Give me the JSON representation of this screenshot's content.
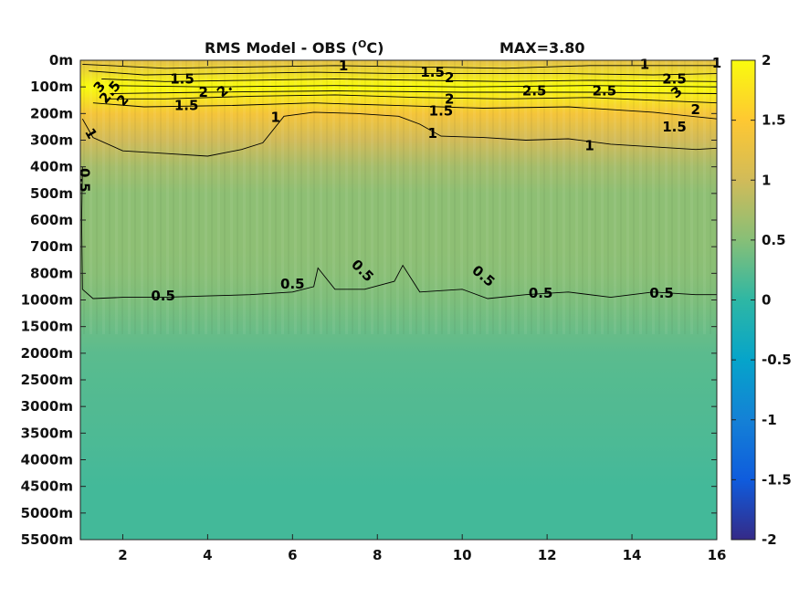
{
  "chart_data": {
    "type": "heatmap",
    "title": {
      "main": "RMS Model - OBS (",
      "superscript": "O",
      "unit": "C)",
      "max": "MAX=3.80"
    },
    "x": {
      "min": 1,
      "max": 16,
      "ticks": [
        2,
        4,
        6,
        8,
        10,
        12,
        14,
        16
      ],
      "tick_labels": [
        "2",
        "4",
        "6",
        "8",
        "10",
        "12",
        "14",
        "16"
      ]
    },
    "y": {
      "scale": "categorical-depth",
      "tick_labels": [
        "0m",
        "100m",
        "200m",
        "300m",
        "400m",
        "500m",
        "600m",
        "700m",
        "800m",
        "1000m",
        "1500m",
        "2000m",
        "2500m",
        "3000m",
        "3500m",
        "4000m",
        "4500m",
        "5000m",
        "5500m"
      ]
    },
    "colorbar": {
      "min": -2,
      "max": 2,
      "ticks": [
        2,
        1.5,
        1,
        0.5,
        0,
        -0.5,
        -1,
        -1.5,
        -2
      ],
      "tick_labels": [
        "2",
        "1.5",
        "1",
        "0.5",
        "0",
        "-0.5",
        "-1",
        "-1.5",
        "-2"
      ],
      "colormap": "parula",
      "stops": [
        "#352a87",
        "#0f5cdd",
        "#1481d6",
        "#06a4ca",
        "#2eb7a4",
        "#87bf77",
        "#d1bb59",
        "#fec832",
        "#f9fb0e"
      ]
    },
    "depth_profile": [
      {
        "depth": "0m",
        "value": 1.2
      },
      {
        "depth": "100m",
        "value": 2.5
      },
      {
        "depth": "200m",
        "value": 1.4
      },
      {
        "depth": "300m",
        "value": 1.0
      },
      {
        "depth": "400m",
        "value": 0.7
      },
      {
        "depth": "500m",
        "value": 0.55
      },
      {
        "depth": "600m",
        "value": 0.55
      },
      {
        "depth": "700m",
        "value": 0.55
      },
      {
        "depth": "800m",
        "value": 0.52
      },
      {
        "depth": "1000m",
        "value": 0.45
      },
      {
        "depth": "1500m",
        "value": 0.35
      },
      {
        "depth": "2000m",
        "value": 0.25
      },
      {
        "depth": "2500m",
        "value": 0.22
      },
      {
        "depth": "3000m",
        "value": 0.2
      },
      {
        "depth": "3500m",
        "value": 0.18
      },
      {
        "depth": "4000m",
        "value": 0.15
      },
      {
        "depth": "4500m",
        "value": 0.12
      },
      {
        "depth": "5000m",
        "value": 0.12
      },
      {
        "depth": "5500m",
        "value": 0.12
      }
    ],
    "contour_labels": [
      {
        "text": "1",
        "x": 7.2,
        "depth": 0.2,
        "rotate": 0
      },
      {
        "text": "1.5",
        "x": 3.4,
        "depth": 0.7,
        "rotate": 0
      },
      {
        "text": "1.5",
        "x": 9.3,
        "depth": 0.45,
        "rotate": 0
      },
      {
        "text": "2",
        "x": 9.7,
        "depth": 0.65,
        "rotate": 0
      },
      {
        "text": "1",
        "x": 14.3,
        "depth": 0.15,
        "rotate": 0
      },
      {
        "text": "2.5",
        "x": 15.0,
        "depth": 0.7,
        "rotate": 0
      },
      {
        "text": "1",
        "x": 16.0,
        "depth": 0.1,
        "rotate": 0
      },
      {
        "text": "2.5",
        "x": 1.7,
        "depth": 1.2,
        "rotate": -50
      },
      {
        "text": "3",
        "x": 1.45,
        "depth": 1.0,
        "rotate": -50
      },
      {
        "text": "2",
        "x": 2.0,
        "depth": 1.5,
        "rotate": -50
      },
      {
        "text": "2",
        "x": 3.9,
        "depth": 1.2,
        "rotate": 0
      },
      {
        "text": "2.",
        "x": 4.4,
        "depth": 1.1,
        "rotate": -40
      },
      {
        "text": "2",
        "x": 9.7,
        "depth": 1.45,
        "rotate": 0
      },
      {
        "text": "2.5",
        "x": 11.7,
        "depth": 1.15,
        "rotate": 0
      },
      {
        "text": "2.5",
        "x": 13.35,
        "depth": 1.15,
        "rotate": 0
      },
      {
        "text": "3",
        "x": 15.05,
        "depth": 1.2,
        "rotate": -40
      },
      {
        "text": "1.5",
        "x": 3.5,
        "depth": 1.7,
        "rotate": 0
      },
      {
        "text": "1.5",
        "x": 9.5,
        "depth": 1.9,
        "rotate": 0
      },
      {
        "text": "2",
        "x": 15.5,
        "depth": 1.85,
        "rotate": 0
      },
      {
        "text": "1.5",
        "x": 15.0,
        "depth": 2.5,
        "rotate": 0
      },
      {
        "text": "1",
        "x": 5.6,
        "depth": 2.15,
        "rotate": 0
      },
      {
        "text": "1",
        "x": 9.3,
        "depth": 2.75,
        "rotate": 0
      },
      {
        "text": "1",
        "x": 13.0,
        "depth": 3.2,
        "rotate": 0
      },
      {
        "text": "1",
        "x": 1.25,
        "depth": 2.75,
        "rotate": 60
      },
      {
        "text": "0.5",
        "x": 1.1,
        "depth": 4.5,
        "rotate": 90
      },
      {
        "text": "0.5",
        "x": 2.95,
        "depth": 8.85,
        "rotate": 0
      },
      {
        "text": "0.5",
        "x": 6.0,
        "depth": 8.4,
        "rotate": 0
      },
      {
        "text": "0.5",
        "x": 7.65,
        "depth": 7.9,
        "rotate": 45
      },
      {
        "text": "0.5",
        "x": 10.5,
        "depth": 8.1,
        "rotate": 40
      },
      {
        "text": "0.5",
        "x": 11.85,
        "depth": 8.75,
        "rotate": 0
      },
      {
        "text": "0.5",
        "x": 14.7,
        "depth": 8.75,
        "rotate": 0
      }
    ],
    "contours": [
      {
        "level": 0.5,
        "points": [
          [
            1.05,
            4
          ],
          [
            1.03,
            6
          ],
          [
            1.05,
            8.6
          ],
          [
            1.3,
            8.95
          ],
          [
            2,
            8.9
          ],
          [
            3,
            8.9
          ],
          [
            4,
            8.85
          ],
          [
            5,
            8.8
          ],
          [
            6,
            8.7
          ],
          [
            6.5,
            8.5
          ],
          [
            6.6,
            7.8
          ],
          [
            7,
            8.6
          ],
          [
            7.7,
            8.6
          ],
          [
            8.4,
            8.3
          ],
          [
            8.6,
            7.7
          ],
          [
            9,
            8.7
          ],
          [
            10,
            8.6
          ],
          [
            10.6,
            8.95
          ],
          [
            11.5,
            8.8
          ],
          [
            12.5,
            8.7
          ],
          [
            13.5,
            8.9
          ],
          [
            14.5,
            8.7
          ],
          [
            15.5,
            8.8
          ],
          [
            16,
            8.8
          ]
        ]
      },
      {
        "level": 1,
        "points": [
          [
            1.05,
            2.2
          ],
          [
            1.3,
            2.9
          ],
          [
            2,
            3.4
          ],
          [
            3,
            3.5
          ],
          [
            4,
            3.6
          ],
          [
            4.8,
            3.35
          ],
          [
            5.3,
            3.1
          ],
          [
            5.8,
            2.1
          ],
          [
            6.5,
            1.95
          ],
          [
            7.5,
            2.0
          ],
          [
            8.5,
            2.1
          ],
          [
            9,
            2.4
          ],
          [
            9.5,
            2.85
          ],
          [
            10.5,
            2.9
          ],
          [
            11.5,
            3.0
          ],
          [
            12.5,
            2.95
          ],
          [
            13.5,
            3.15
          ],
          [
            14.5,
            3.25
          ],
          [
            15.5,
            3.35
          ],
          [
            16,
            3.3
          ]
        ]
      },
      {
        "level": 1,
        "points": [
          [
            1.05,
            0.15
          ],
          [
            3,
            0.3
          ],
          [
            5,
            0.25
          ],
          [
            7,
            0.2
          ],
          [
            9,
            0.25
          ],
          [
            11,
            0.3
          ],
          [
            13,
            0.2
          ],
          [
            15,
            0.2
          ],
          [
            16,
            0.2
          ]
        ]
      },
      {
        "level": 1.5,
        "points": [
          [
            1.2,
            0.4
          ],
          [
            2.5,
            0.55
          ],
          [
            4.5,
            0.5
          ],
          [
            6.5,
            0.45
          ],
          [
            8.5,
            0.5
          ],
          [
            10.5,
            0.5
          ],
          [
            12.5,
            0.5
          ],
          [
            14.5,
            0.55
          ],
          [
            16,
            0.5
          ]
        ]
      },
      {
        "level": 1.5,
        "points": [
          [
            1.3,
            1.6
          ],
          [
            2.5,
            1.75
          ],
          [
            4.5,
            1.7
          ],
          [
            6.5,
            1.6
          ],
          [
            8.5,
            1.7
          ],
          [
            10.5,
            1.8
          ],
          [
            12.5,
            1.75
          ],
          [
            14.5,
            1.95
          ],
          [
            16,
            2.2
          ]
        ]
      },
      {
        "level": 2,
        "points": [
          [
            1.5,
            0.7
          ],
          [
            3,
            0.8
          ],
          [
            5,
            0.75
          ],
          [
            7,
            0.7
          ],
          [
            9,
            0.75
          ],
          [
            11,
            0.8
          ],
          [
            13,
            0.75
          ],
          [
            16,
            0.8
          ]
        ]
      },
      {
        "level": 2,
        "points": [
          [
            1.6,
            1.45
          ],
          [
            3,
            1.45
          ],
          [
            5,
            1.35
          ],
          [
            7,
            1.3
          ],
          [
            9,
            1.4
          ],
          [
            11,
            1.45
          ],
          [
            13,
            1.4
          ],
          [
            16,
            1.6
          ]
        ]
      },
      {
        "level": 2.5,
        "points": [
          [
            1.7,
            0.95
          ],
          [
            4,
            1.0
          ],
          [
            7,
            0.95
          ],
          [
            10,
            1.0
          ],
          [
            13,
            0.95
          ],
          [
            16,
            1.0
          ]
        ]
      },
      {
        "level": 2.5,
        "points": [
          [
            1.7,
            1.25
          ],
          [
            4,
            1.2
          ],
          [
            7,
            1.15
          ],
          [
            10,
            1.2
          ],
          [
            13,
            1.2
          ],
          [
            16,
            1.25
          ]
        ]
      }
    ]
  }
}
